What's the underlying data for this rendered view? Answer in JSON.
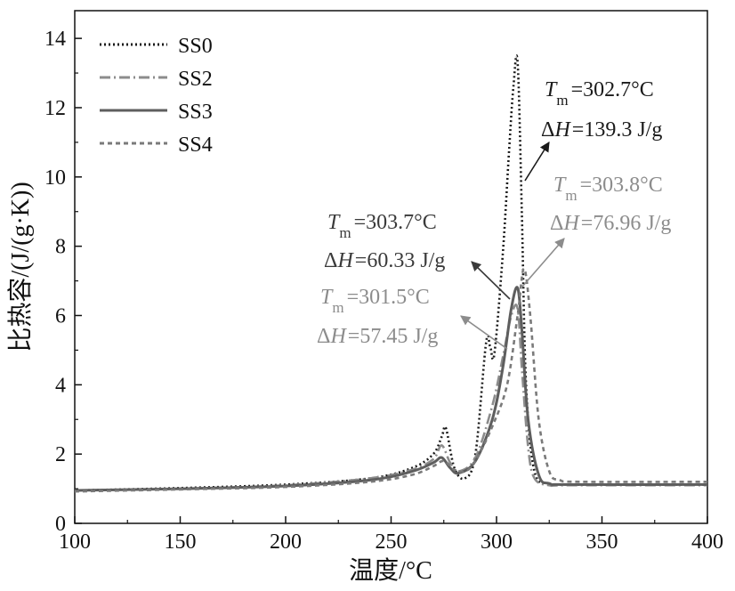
{
  "chart_data": {
    "type": "line",
    "xlabel": "温度/°C",
    "ylabel": "比热容/(J/(g·K))",
    "xlim": [
      100,
      400
    ],
    "ylim": [
      0,
      14.8
    ],
    "x_ticks": [
      100,
      150,
      200,
      250,
      300,
      350,
      400
    ],
    "y_ticks": [
      0,
      2,
      4,
      6,
      8,
      10,
      12,
      14
    ],
    "grid": false,
    "legend_position": "top-left",
    "series": [
      {
        "name": "SS0",
        "color": "#1a1a1a",
        "dash": "2,3",
        "x": [
          100,
          150,
          200,
          240,
          260,
          270,
          274,
          276,
          280,
          285,
          290,
          295,
          297,
          299,
          303,
          306,
          308,
          310,
          312,
          314,
          318,
          325,
          335,
          400
        ],
        "y": [
          0.95,
          1.02,
          1.12,
          1.3,
          1.6,
          2.0,
          2.5,
          2.75,
          1.6,
          1.3,
          2.0,
          5.2,
          5.1,
          4.9,
          7.8,
          10.8,
          12.6,
          13.3,
          9.0,
          4.0,
          1.5,
          1.15,
          1.12,
          1.12
        ]
      },
      {
        "name": "SS2",
        "color": "#8c8c8c",
        "dash": "12,4,2,4",
        "x": [
          100,
          150,
          200,
          240,
          260,
          270,
          274,
          278,
          282,
          290,
          298,
          303,
          307,
          310,
          312,
          315,
          318,
          325,
          335,
          400
        ],
        "y": [
          0.95,
          1.0,
          1.1,
          1.3,
          1.55,
          1.85,
          2.25,
          1.75,
          1.5,
          1.9,
          3.4,
          4.8,
          6.0,
          6.2,
          4.5,
          2.2,
          1.3,
          1.1,
          1.1,
          1.1
        ]
      },
      {
        "name": "SS3",
        "color": "#5e5e5e",
        "dash": "",
        "x": [
          100,
          150,
          200,
          240,
          260,
          270,
          274,
          278,
          282,
          290,
          298,
          303,
          307,
          310,
          312,
          315,
          320,
          325,
          335,
          400
        ],
        "y": [
          0.95,
          1.0,
          1.08,
          1.25,
          1.5,
          1.75,
          1.9,
          1.6,
          1.45,
          1.8,
          3.0,
          4.5,
          6.2,
          6.8,
          5.6,
          3.0,
          1.4,
          1.15,
          1.12,
          1.12
        ]
      },
      {
        "name": "SS4",
        "color": "#7a7a7a",
        "dash": "5,4",
        "x": [
          100,
          150,
          200,
          240,
          260,
          270,
          275,
          280,
          285,
          290,
          298,
          305,
          310,
          313,
          316,
          320,
          325,
          330,
          340,
          400
        ],
        "y": [
          0.92,
          0.98,
          1.05,
          1.2,
          1.4,
          1.65,
          1.8,
          1.55,
          1.5,
          1.8,
          2.8,
          4.0,
          6.0,
          7.35,
          6.0,
          3.0,
          1.5,
          1.25,
          1.2,
          1.2
        ]
      }
    ],
    "annotations": [
      {
        "series": "SS0",
        "color": "#1a1a1a",
        "tm_value": "=302.7°C",
        "dh_value": "=139.3 J/g"
      },
      {
        "series": "SS4",
        "color": "#8c8c8c",
        "tm_value": "=303.8°C",
        "dh_value": "=76.96 J/g"
      },
      {
        "series": "SS3",
        "color": "#3a3a3a",
        "tm_value": "=303.7°C",
        "dh_value": "=60.33 J/g"
      },
      {
        "series": "SS2",
        "color": "#8c8c8c",
        "tm_value": "=301.5°C",
        "dh_value": "=57.45 J/g"
      }
    ],
    "annotation_symbols": {
      "t": "T",
      "m": "m",
      "delta": "Δ",
      "h": "H"
    }
  }
}
